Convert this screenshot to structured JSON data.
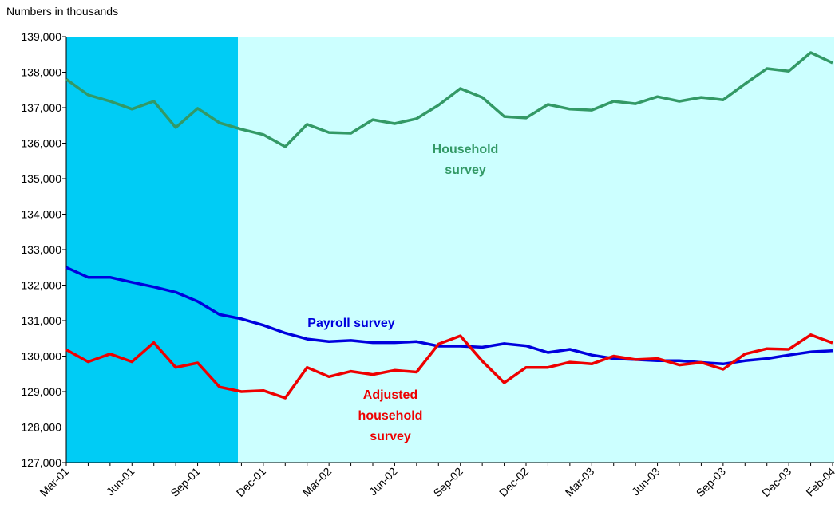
{
  "chart_data": {
    "type": "line",
    "y_label": "Numbers in thousands",
    "categories": [
      "Mar-01",
      null,
      null,
      "Jun-01",
      null,
      null,
      "Sep-01",
      null,
      null,
      "Dec-01",
      null,
      null,
      "Mar-02",
      null,
      null,
      "Jun-02",
      null,
      null,
      "Sep-02",
      null,
      null,
      "Dec-02",
      null,
      null,
      "Mar-03",
      null,
      null,
      "Jun-03",
      null,
      null,
      "Sep-03",
      null,
      null,
      "Dec-03",
      null,
      "Feb-04"
    ],
    "ylim": [
      127000,
      139000
    ],
    "yticks": [
      {
        "value": 127000,
        "label": "127,000"
      },
      {
        "value": 128000,
        "label": "128,000"
      },
      {
        "value": 129000,
        "label": "129,000"
      },
      {
        "value": 130000,
        "label": "130,000"
      },
      {
        "value": 131000,
        "label": "131,000"
      },
      {
        "value": 132000,
        "label": "132,000"
      },
      {
        "value": 133000,
        "label": "133,000"
      },
      {
        "value": 134000,
        "label": "134,000"
      },
      {
        "value": 135000,
        "label": "135,000"
      },
      {
        "value": 136000,
        "label": "136,000"
      },
      {
        "value": 137000,
        "label": "137,000"
      },
      {
        "value": 138000,
        "label": "138,000"
      },
      {
        "value": 139000,
        "label": "139,000"
      }
    ],
    "grid": false,
    "series": [
      {
        "name": [
          "Household",
          "survey"
        ],
        "color": "#339966",
        "values": [
          137800,
          137360,
          137180,
          136960,
          137180,
          136440,
          136980,
          136570,
          136390,
          136240,
          135900,
          136530,
          136300,
          136280,
          136660,
          136550,
          136690,
          137070,
          137540,
          137290,
          136750,
          136710,
          137090,
          136960,
          136930,
          137180,
          137110,
          137310,
          137180,
          137290,
          137220,
          137670,
          138100,
          138030,
          138550,
          138260
        ]
      },
      {
        "name": [
          "Payroll survey"
        ],
        "color": "#0000dd",
        "values": [
          132500,
          132220,
          132220,
          132080,
          131950,
          131800,
          131540,
          131170,
          131050,
          130870,
          130650,
          130480,
          130410,
          130440,
          130380,
          130380,
          130410,
          130280,
          130280,
          130250,
          130350,
          130290,
          130100,
          130190,
          130030,
          129930,
          129900,
          129870,
          129870,
          129820,
          129780,
          129870,
          129930,
          130030,
          130120,
          130150
        ]
      },
      {
        "name": [
          "Adjusted",
          "household",
          "survey"
        ],
        "color": "#ee0000",
        "values": [
          130180,
          129840,
          130060,
          129840,
          130380,
          129680,
          129810,
          129130,
          129000,
          129030,
          128820,
          129680,
          129420,
          129570,
          129480,
          129600,
          129550,
          130340,
          130570,
          129860,
          129250,
          129680,
          129680,
          129830,
          129780,
          130000,
          129900,
          129930,
          129750,
          129820,
          129630,
          130060,
          130210,
          130190,
          130600,
          130370
        ]
      }
    ]
  }
}
